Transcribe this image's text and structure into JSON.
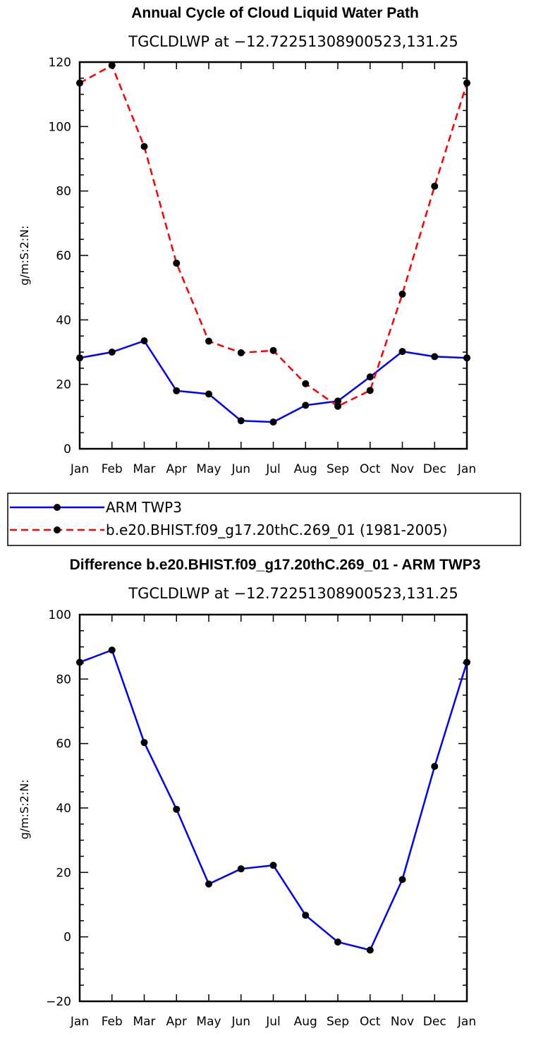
{
  "colors": {
    "blue": "#0000ff",
    "red": "#ff0000",
    "black": "#000000"
  },
  "legend": {
    "entries": [
      {
        "label": "ARM TWP3",
        "color": "#0000ff",
        "style": "solid"
      },
      {
        "label": "b.e20.BHIST.f09_g17.20thC.269_01 (1981-2005)",
        "color": "#ff0000",
        "style": "dashed"
      }
    ]
  },
  "chart_data": [
    {
      "type": "line",
      "title": "Annual Cycle of Cloud Liquid Water Path",
      "subtitle": "TGCLDLWP at −12.72251308900523,131.25",
      "xlabel": "",
      "ylabel": "g/m:S:2:N:",
      "categories": [
        "Jan",
        "Feb",
        "Mar",
        "Apr",
        "May",
        "Jun",
        "Jul",
        "Aug",
        "Sep",
        "Oct",
        "Nov",
        "Dec",
        "Jan"
      ],
      "ylim": [
        0,
        120
      ],
      "yticks": [
        0,
        20,
        40,
        60,
        80,
        100,
        120
      ],
      "series": [
        {
          "name": "ARM TWP3",
          "color": "#0000ff",
          "dash": false,
          "values": [
            28.2,
            30.0,
            33.5,
            18.0,
            17.0,
            8.7,
            8.3,
            13.5,
            14.8,
            22.3,
            30.2,
            28.6,
            28.2
          ]
        },
        {
          "name": "b.e20.BHIST.f09_g17.20thC.269_01 (1981-2005)",
          "color": "#ff0000",
          "dash": true,
          "values": [
            113.5,
            119.0,
            93.8,
            57.6,
            33.4,
            29.8,
            30.5,
            20.2,
            13.2,
            18.1,
            48.0,
            81.5,
            113.5
          ]
        }
      ]
    },
    {
      "type": "line",
      "title": "Difference b.e20.BHIST.f09_g17.20thC.269_01 - ARM TWP3",
      "subtitle": "TGCLDLWP at −12.72251308900523,131.25",
      "xlabel": "",
      "ylabel": "g/m:S:2:N:",
      "categories": [
        "Jan",
        "Feb",
        "Mar",
        "Apr",
        "May",
        "Jun",
        "Jul",
        "Aug",
        "Sep",
        "Oct",
        "Nov",
        "Dec",
        "Jan"
      ],
      "ylim": [
        -20,
        100
      ],
      "yticks": [
        -20,
        0,
        20,
        40,
        60,
        80,
        100
      ],
      "series": [
        {
          "name": "Difference",
          "color": "#0000ff",
          "dash": false,
          "values": [
            85.2,
            89.0,
            60.3,
            39.6,
            16.4,
            21.1,
            22.2,
            6.7,
            -1.6,
            -4.1,
            17.8,
            52.9,
            85.2
          ]
        }
      ]
    }
  ]
}
